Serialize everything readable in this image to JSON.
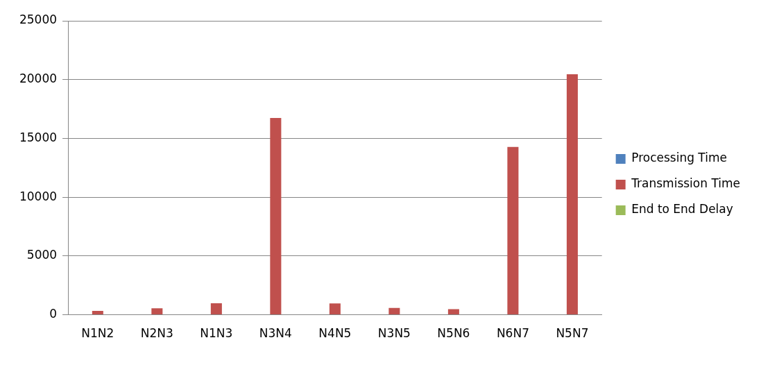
{
  "chart_data": {
    "type": "bar",
    "categories": [
      "N1N2",
      "N2N3",
      "N1N3",
      "N3N4",
      "N4N5",
      "N3N5",
      "N5N6",
      "N6N7",
      "N5N7"
    ],
    "series": [
      {
        "name": "Processing Time",
        "color": "#4f81bd",
        "values": [
          0,
          0,
          0,
          0,
          0,
          0,
          0,
          0,
          0
        ]
      },
      {
        "name": "Transmission Time",
        "color": "#c0504d",
        "values": [
          330,
          555,
          985,
          16740,
          960,
          580,
          480,
          14270,
          20450
        ]
      },
      {
        "name": "End to End Delay",
        "color": "#9bbb59",
        "values": [
          0,
          0,
          0,
          0,
          0,
          0,
          0,
          0,
          0
        ]
      }
    ],
    "ylim": [
      0,
      25000
    ],
    "yticks": [
      0,
      5000,
      10000,
      15000,
      20000,
      25000
    ],
    "grid": "y",
    "legend": "right"
  }
}
